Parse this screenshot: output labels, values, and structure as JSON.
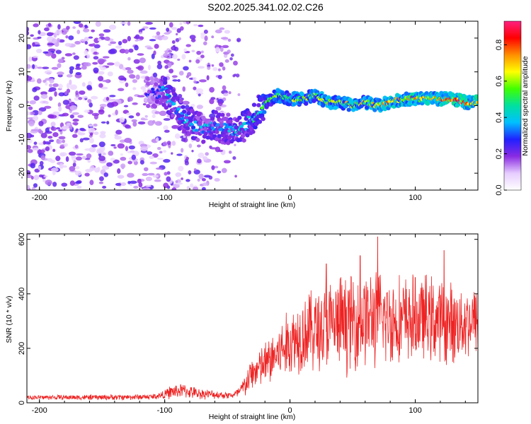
{
  "chart_data": [
    {
      "type": "heatmap",
      "title": "S202.2025.341.02.02.C26",
      "xlabel": "Height of straight line (km)",
      "ylabel": "Frequency (Hz)",
      "xlim": [
        -210,
        150
      ],
      "ylim": [
        -25,
        25
      ],
      "xticks": [
        -200,
        -100,
        0,
        100
      ],
      "yticks": [
        -20,
        -10,
        0,
        10,
        20
      ],
      "colorbar": {
        "label": "Normalized spectral amplitude",
        "range": [
          0,
          0.93
        ],
        "ticks": [
          "0.0",
          "0.2",
          "0.4",
          "0.6",
          "0.8"
        ],
        "colors": [
          "#ffffff",
          "#e6ccff",
          "#8a2be2",
          "#2020ff",
          "#00c0ff",
          "#00e0a0",
          "#40ff00",
          "#ffff00",
          "#ff9000",
          "#ff0000",
          "#ff2080"
        ]
      },
      "ridge": {
        "x": [
          -110,
          -100,
          -90,
          -80,
          -70,
          -60,
          -50,
          -40,
          -30,
          -20,
          -10,
          0,
          10,
          20,
          30,
          40,
          50,
          60,
          70,
          80,
          90,
          100,
          110,
          120,
          130,
          140,
          150
        ],
        "frequency_hz": [
          4,
          4,
          -2,
          -5,
          -7,
          -6,
          -7,
          -7,
          -4,
          1,
          3,
          2,
          2,
          3,
          1,
          1,
          0,
          1,
          0,
          1,
          2,
          2,
          2,
          2,
          2,
          1,
          1
        ],
        "peak_amplitude": [
          0.3,
          0.45,
          0.45,
          0.45,
          0.4,
          0.45,
          0.45,
          0.45,
          0.5,
          0.6,
          0.65,
          0.65,
          0.7,
          0.7,
          0.75,
          0.7,
          0.75,
          0.75,
          0.8,
          0.8,
          0.8,
          0.85,
          0.85,
          0.85,
          0.9,
          0.9,
          0.9
        ]
      },
      "noise_region": {
        "x_range": [
          -210,
          -50
        ],
        "amplitude": 0.2
      }
    },
    {
      "type": "line",
      "xlabel": "Height of straight line (km)",
      "ylabel": "SNR (10 * v/v)",
      "xlim": [
        -210,
        150
      ],
      "ylim": [
        0,
        620
      ],
      "xticks": [
        -200,
        -100,
        0,
        100
      ],
      "yticks": [
        0,
        200,
        400,
        600
      ],
      "color": "#ee2222",
      "envelope": {
        "x": [
          -210,
          -150,
          -110,
          -100,
          -95,
          -85,
          -75,
          -60,
          -50,
          -45,
          -40,
          -35,
          -30,
          -20,
          -10,
          0,
          10,
          20,
          30,
          40,
          50,
          60,
          70,
          80,
          90,
          100,
          110,
          120,
          130,
          140,
          150
        ],
        "mean": [
          20,
          20,
          22,
          30,
          40,
          45,
          35,
          30,
          28,
          28,
          40,
          70,
          110,
          140,
          180,
          220,
          260,
          270,
          280,
          290,
          300,
          310,
          310,
          305,
          300,
          310,
          310,
          300,
          290,
          300,
          300
        ],
        "spread": [
          8,
          10,
          10,
          15,
          25,
          25,
          20,
          15,
          12,
          12,
          25,
          45,
          60,
          80,
          100,
          120,
          140,
          150,
          160,
          170,
          170,
          170,
          170,
          160,
          160,
          150,
          150,
          150,
          140,
          130,
          120
        ]
      },
      "peaks": [
        {
          "x": 70,
          "y": 610
        },
        {
          "x": 123,
          "y": 560
        },
        {
          "x": 56,
          "y": 540
        },
        {
          "x": 100,
          "y": 460
        },
        {
          "x": 29,
          "y": 510
        }
      ]
    }
  ]
}
